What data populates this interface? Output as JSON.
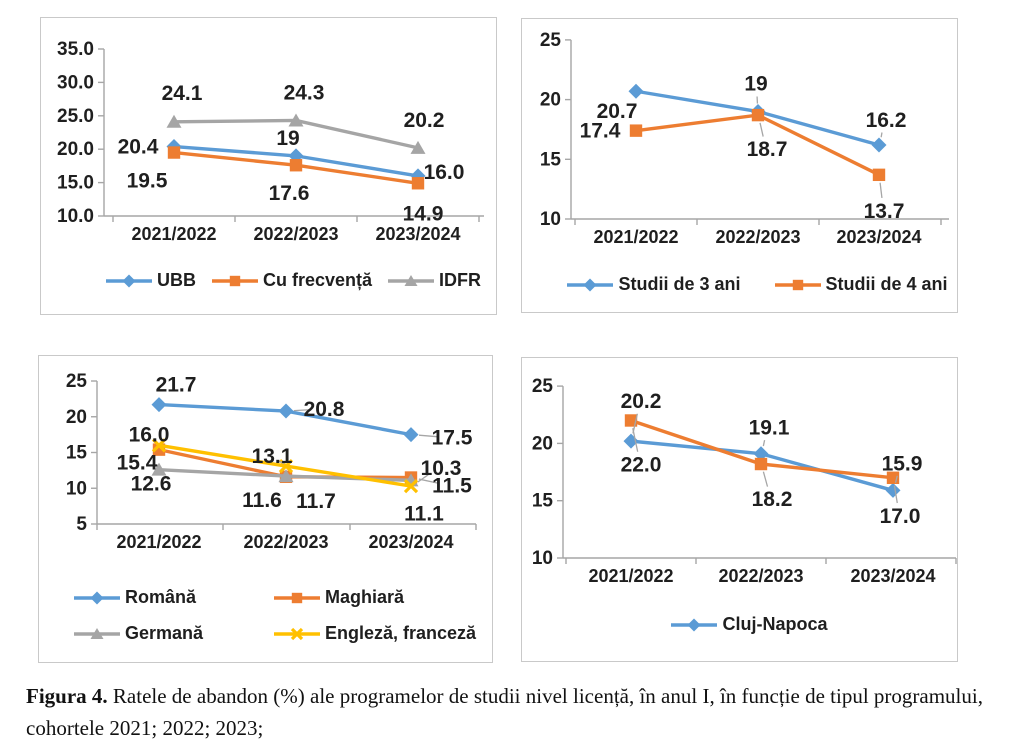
{
  "figure": {
    "caption_prefix": "Figura 4.",
    "caption_text": " Ratele de abandon (%) ale programelor de studii nivel licență, în anul I, în funcție de tipul programului, cohortele 2021; 2022; 2023;"
  },
  "colors": {
    "blue": "#5B9BD5",
    "orange": "#ED7D31",
    "gray": "#A5A5A5",
    "yellow": "#FFC000",
    "axis": "#A6A6A6",
    "leader": "#A6A6A6",
    "text": "#1F1F1F",
    "panel_border": "#C9C9C9"
  },
  "chart_data": [
    {
      "id": "top-left",
      "type": "line",
      "categories": [
        "2021/2022",
        "2022/2023",
        "2023/2024"
      ],
      "ylim": [
        10,
        35
      ],
      "yticks": [
        "10.0",
        "15.0",
        "20.0",
        "25.0",
        "30.0",
        "35.0"
      ],
      "legend_position": "bottom",
      "series": [
        {
          "name": "UBB",
          "color": "blue",
          "marker": "diamond",
          "values": [
            20.4,
            19,
            16.0
          ],
          "labels": [
            "20.4",
            "19",
            "16.0"
          ],
          "in_legend": true
        },
        {
          "name": "Cu frecvență",
          "color": "orange",
          "marker": "square",
          "values": [
            19.5,
            17.6,
            14.9
          ],
          "labels": [
            "19.5",
            "17.6",
            "14.9"
          ],
          "in_legend": true
        },
        {
          "name": "IDFR",
          "color": "gray",
          "marker": "triangle",
          "values": [
            24.1,
            24.3,
            20.2
          ],
          "labels": [
            "24.1",
            "24.3",
            "20.2"
          ],
          "in_legend": true
        }
      ]
    },
    {
      "id": "top-right",
      "type": "line",
      "categories": [
        "2021/2022",
        "2022/2023",
        "2023/2024"
      ],
      "ylim": [
        10,
        25
      ],
      "yticks": [
        "10",
        "15",
        "20",
        "25"
      ],
      "legend_position": "bottom",
      "series": [
        {
          "name": "Studii de 3 ani",
          "color": "blue",
          "marker": "diamond",
          "values": [
            20.7,
            19,
            16.2
          ],
          "labels": [
            "20.7",
            "19",
            "16.2"
          ],
          "in_legend": true
        },
        {
          "name": "Studii de 4 ani",
          "color": "orange",
          "marker": "square",
          "values": [
            17.4,
            18.7,
            13.7
          ],
          "labels": [
            "17.4",
            "18.7",
            "13.7"
          ],
          "in_legend": true
        }
      ]
    },
    {
      "id": "bottom-left",
      "type": "line",
      "categories": [
        "2021/2022",
        "2022/2023",
        "2023/2024"
      ],
      "ylim": [
        5,
        25
      ],
      "yticks": [
        "5",
        "10",
        "15",
        "20",
        "25"
      ],
      "legend_position": "bottom",
      "series": [
        {
          "name": "Română",
          "color": "blue",
          "marker": "diamond",
          "values": [
            21.7,
            20.8,
            17.5
          ],
          "labels": [
            "21.7",
            "20.8",
            "17.5"
          ],
          "in_legend": true
        },
        {
          "name": "Maghiară",
          "color": "orange",
          "marker": "square",
          "values": [
            15.4,
            11.6,
            11.5
          ],
          "labels": [
            "15.4",
            "11.6",
            "11.5"
          ],
          "in_legend": true
        },
        {
          "name": "Germană",
          "color": "gray",
          "marker": "triangle",
          "values": [
            12.6,
            11.7,
            11.1
          ],
          "labels": [
            "12.6",
            "11.7",
            "11.1"
          ],
          "in_legend": true
        },
        {
          "name": "Engleză, franceză",
          "color": "yellow",
          "marker": "xmark",
          "values": [
            16.0,
            13.1,
            10.3
          ],
          "labels": [
            "16.0",
            "13.1",
            "10.3"
          ],
          "in_legend": true
        }
      ]
    },
    {
      "id": "bottom-right",
      "type": "line",
      "categories": [
        "2021/2022",
        "2022/2023",
        "2023/2024"
      ],
      "ylim": [
        10,
        25
      ],
      "yticks": [
        "10",
        "15",
        "20",
        "25"
      ],
      "legend_position": "bottom",
      "series": [
        {
          "name": "Cluj-Napoca",
          "color": "blue",
          "marker": "diamond",
          "values": [
            20.2,
            19.1,
            15.9
          ],
          "labels": [
            "20.2",
            "19.1",
            "15.9"
          ],
          "in_legend": true
        },
        {
          "name": "",
          "color": "orange",
          "marker": "square",
          "values": [
            22.0,
            18.2,
            17.0
          ],
          "labels": [
            "22.0",
            "18.2",
            "17.0"
          ],
          "in_legend": false
        }
      ]
    }
  ]
}
